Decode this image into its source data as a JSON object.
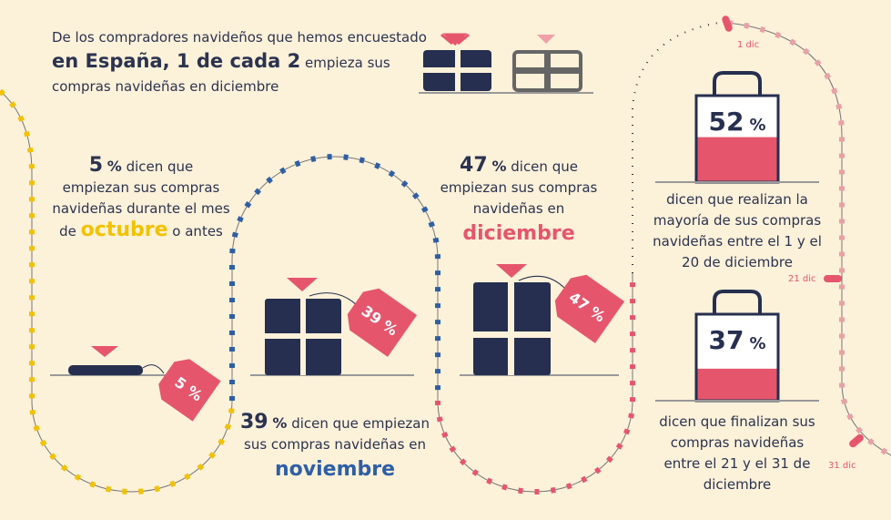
{
  "intro": {
    "line1": "De los compradores navideños que hemos encuestado",
    "highlight": "en España, 1 de cada 2",
    "rest": "empieza sus",
    "line3": "compras navideñas en diciembre"
  },
  "panels": [
    {
      "value": 5,
      "unit": "%",
      "lines": [
        "dicen que",
        "empiezan sus compras",
        "navideñas durante el mes",
        "de"
      ],
      "month": "octubre",
      "after": "o antes",
      "tag": "5 %"
    },
    {
      "value": 39,
      "unit": "%",
      "lines": [
        "dicen que empiezan",
        "sus compras navideñas en"
      ],
      "month": "noviembre",
      "tag": "39 %"
    },
    {
      "value": 47,
      "unit": "%",
      "lines": [
        "dicen que",
        "empiezan sus compras",
        "navideñas en"
      ],
      "month": "diciembre",
      "tag": "47 %"
    }
  ],
  "bags": [
    {
      "value": 52,
      "unit": "%",
      "text": "dicen que realizan la mayoría de sus compras navideñas entre el 1 y el 20 de diciembre"
    },
    {
      "value": 37,
      "unit": "%",
      "text": "dicen que finalizan sus compras navideñas entre el 21 y el 31 de diciembre"
    }
  ],
  "dates": [
    "1 dic",
    "21 dic",
    "31 dic"
  ]
}
